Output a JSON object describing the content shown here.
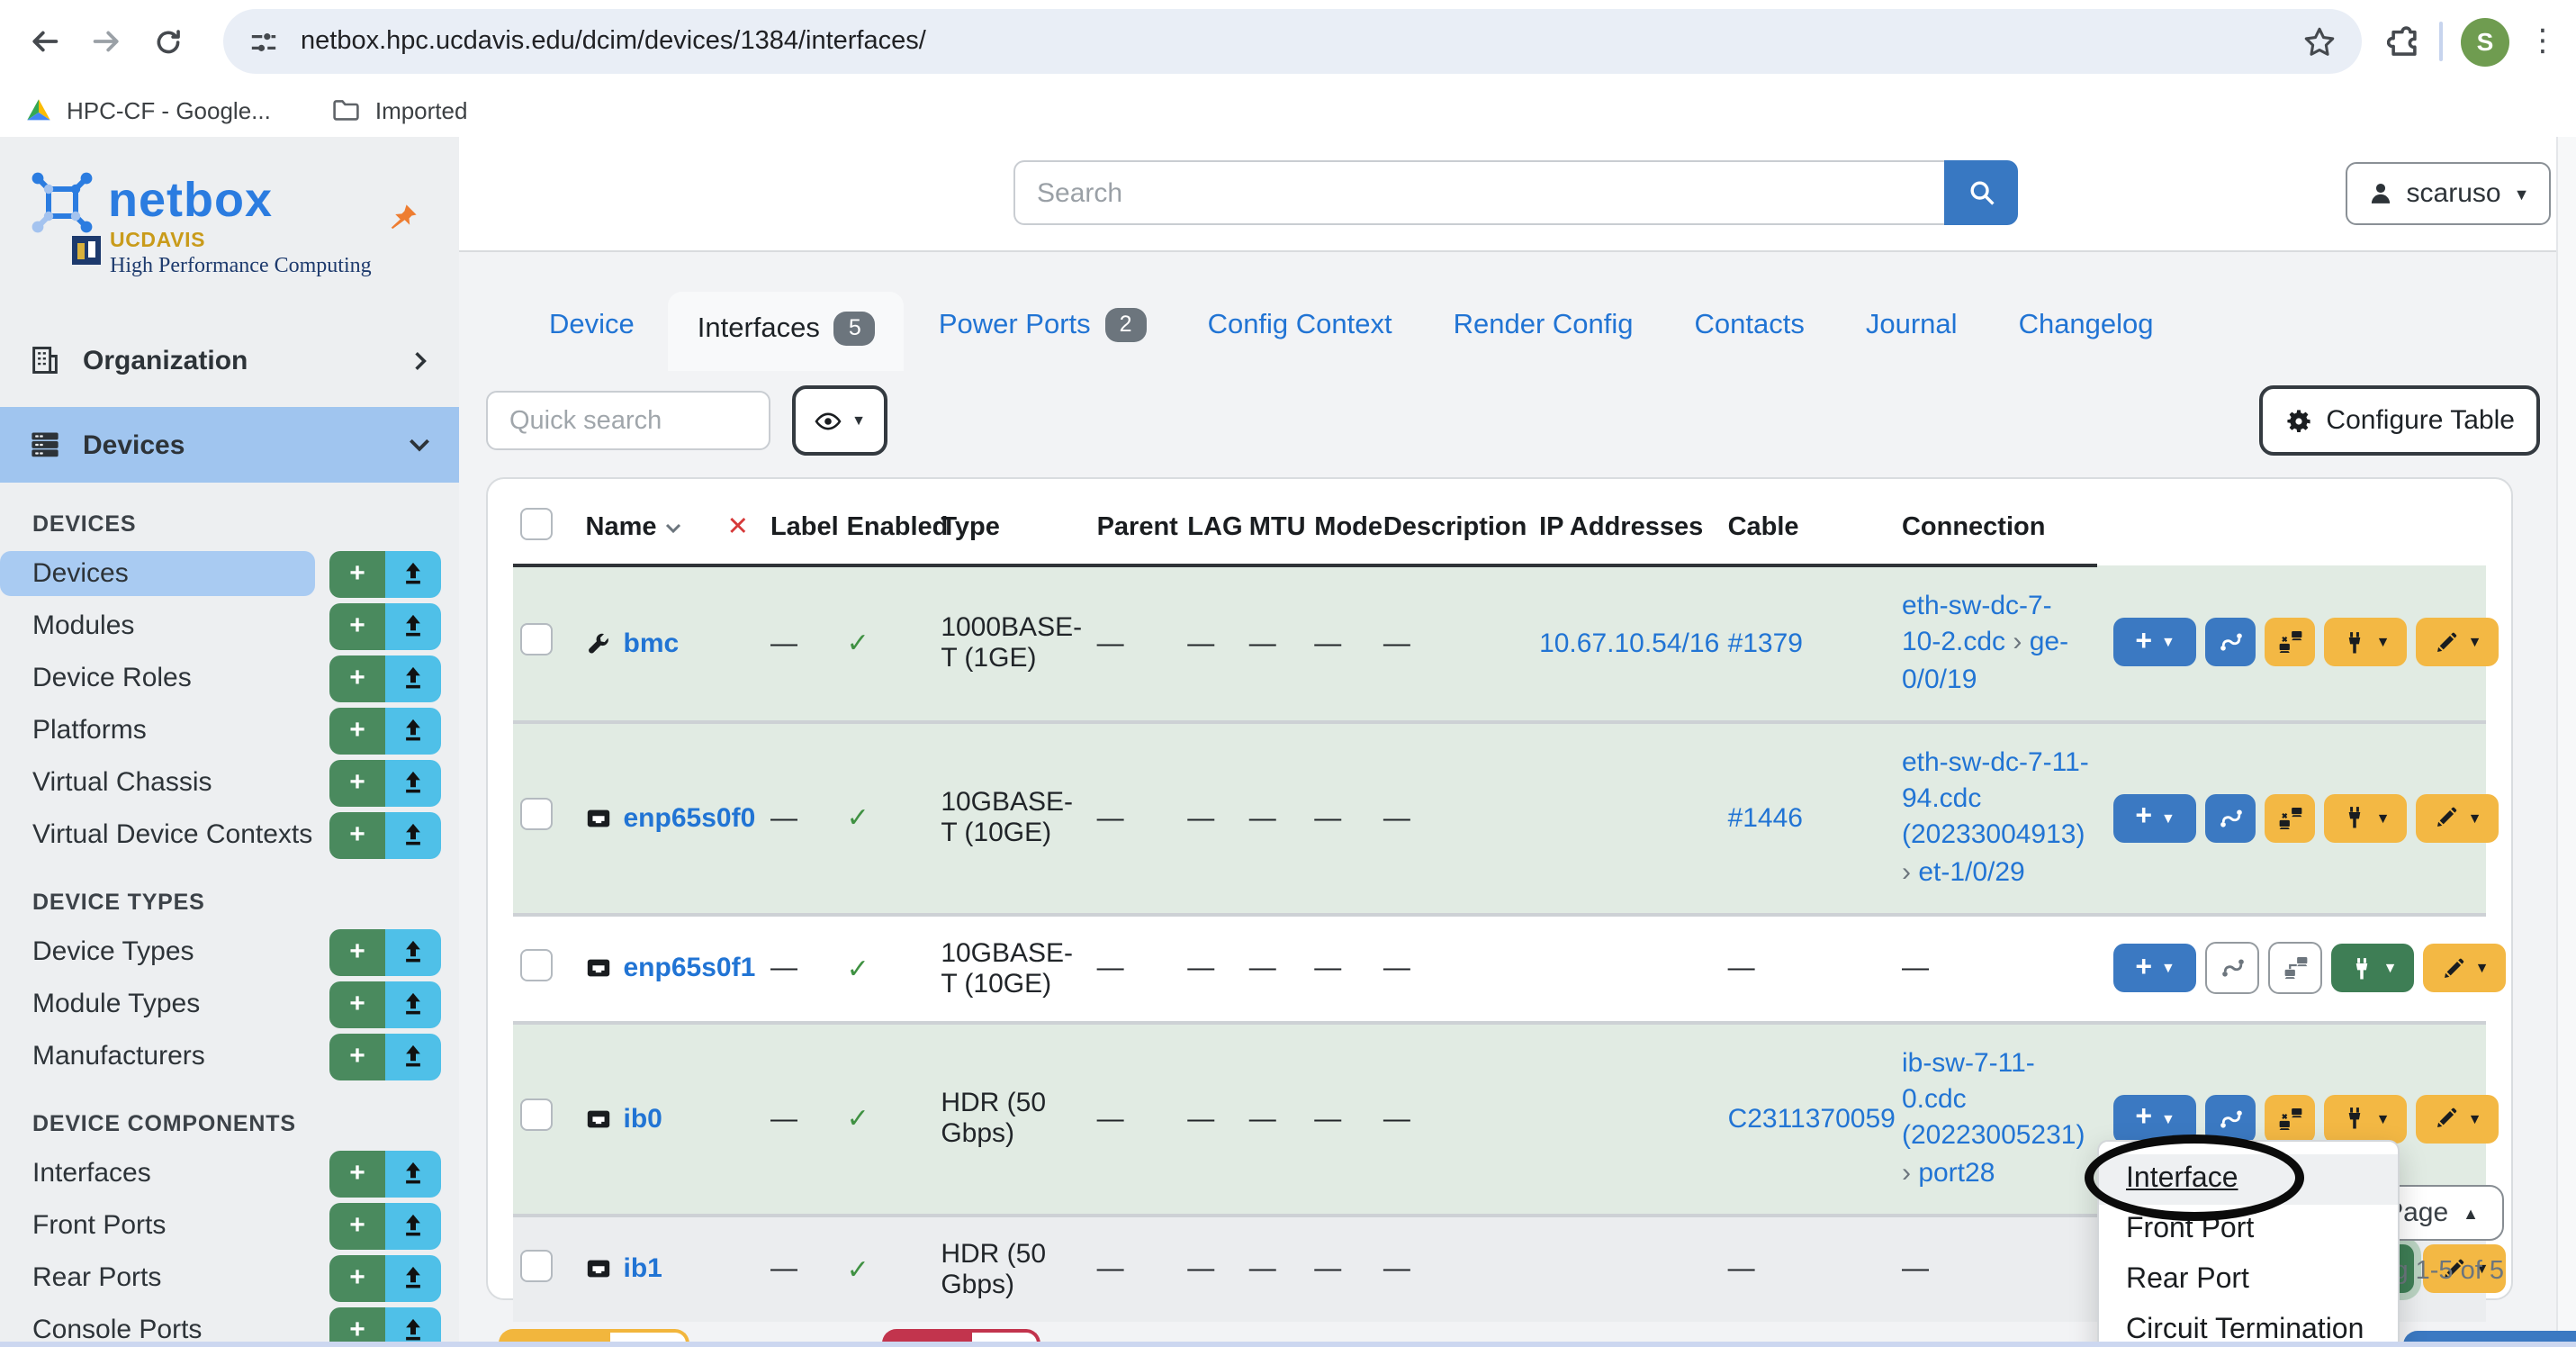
{
  "browser": {
    "url": "netbox.hpc.ucdavis.edu/dcim/devices/1384/interfaces/",
    "avatar_letter": "S",
    "bookmarks": [
      {
        "label": "HPC-CF - Google...",
        "icon": "drive"
      },
      {
        "label": "Imported",
        "icon": "folder"
      }
    ]
  },
  "sidebar": {
    "brand": "netbox",
    "org_name": "UCDAVIS",
    "org_sub": "High Performance Computing",
    "nav_parents": [
      {
        "label": "Organization",
        "icon": "building",
        "chevron": "right",
        "active": false
      },
      {
        "label": "Devices",
        "icon": "servers",
        "chevron": "down",
        "active": true
      }
    ],
    "sections": [
      {
        "title": "DEVICES",
        "items": [
          {
            "label": "Devices",
            "active": true
          },
          {
            "label": "Modules",
            "active": false
          },
          {
            "label": "Device Roles",
            "active": false
          },
          {
            "label": "Platforms",
            "active": false
          },
          {
            "label": "Virtual Chassis",
            "active": false
          },
          {
            "label": "Virtual Device Contexts",
            "active": false
          }
        ]
      },
      {
        "title": "DEVICE TYPES",
        "items": [
          {
            "label": "Device Types",
            "active": false
          },
          {
            "label": "Module Types",
            "active": false
          },
          {
            "label": "Manufacturers",
            "active": false
          }
        ]
      },
      {
        "title": "DEVICE COMPONENTS",
        "items": [
          {
            "label": "Interfaces",
            "active": false
          },
          {
            "label": "Front Ports",
            "active": false
          },
          {
            "label": "Rear Ports",
            "active": false
          },
          {
            "label": "Console Ports",
            "active": false
          }
        ]
      }
    ]
  },
  "topbar": {
    "search_placeholder": "Search",
    "user_label": "scaruso"
  },
  "tabs": [
    {
      "label": "Device",
      "badge": null,
      "active": false
    },
    {
      "label": "Interfaces",
      "badge": "5",
      "active": true
    },
    {
      "label": "Power Ports",
      "badge": "2",
      "active": false
    },
    {
      "label": "Config Context",
      "badge": null,
      "active": false
    },
    {
      "label": "Render Config",
      "badge": null,
      "active": false
    },
    {
      "label": "Contacts",
      "badge": null,
      "active": false
    },
    {
      "label": "Journal",
      "badge": null,
      "active": false
    },
    {
      "label": "Changelog",
      "badge": null,
      "active": false
    }
  ],
  "toolbar": {
    "quick_search_placeholder": "Quick search",
    "configure_table_label": "Configure Table"
  },
  "table": {
    "headers": [
      "Name",
      "✕",
      "Label",
      "Enabled",
      "Type",
      "Parent",
      "LAG",
      "MTU",
      "Mode",
      "Description",
      "IP Addresses",
      "Cable",
      "Connection"
    ],
    "rows": [
      {
        "name": "bmc",
        "name_icon": "wrench",
        "label": "—",
        "enabled": true,
        "type": "1000BASE-T (1GE)",
        "parent": "—",
        "lag": "—",
        "mtu": "—",
        "mode": "—",
        "description": "—",
        "ip": "10.67.10.54/16",
        "cable": "#1379",
        "connection": [
          "eth-sw-dc-7-10-2.cdc",
          "ge-0/0/19"
        ],
        "row_bg": "green",
        "state": "connected",
        "connect_focused": false
      },
      {
        "name": "enp65s0f0",
        "name_icon": "port",
        "label": "—",
        "enabled": true,
        "type": "10GBASE-T (10GE)",
        "parent": "—",
        "lag": "—",
        "mtu": "—",
        "mode": "—",
        "description": "—",
        "ip": "",
        "cable": "#1446",
        "connection": [
          "eth-sw-dc-7-11-94.cdc (20233004913)",
          "et-1/0/29"
        ],
        "row_bg": "green",
        "state": "connected",
        "connect_focused": false
      },
      {
        "name": "enp65s0f1",
        "name_icon": "port",
        "label": "—",
        "enabled": true,
        "type": "10GBASE-T (10GE)",
        "parent": "—",
        "lag": "—",
        "mtu": "—",
        "mode": "—",
        "description": "—",
        "ip": "",
        "cable": "—",
        "connection": [],
        "row_bg": "white",
        "state": "disconnected",
        "connect_focused": false
      },
      {
        "name": "ib0",
        "name_icon": "port",
        "label": "—",
        "enabled": true,
        "type": "HDR (50 Gbps)",
        "parent": "—",
        "lag": "—",
        "mtu": "—",
        "mode": "—",
        "description": "—",
        "ip": "",
        "cable": "C2311370059",
        "connection": [
          "ib-sw-7-11-0.cdc (20223005231)",
          "port28"
        ],
        "row_bg": "green",
        "state": "connected",
        "connect_focused": false
      },
      {
        "name": "ib1",
        "name_icon": "port",
        "label": "—",
        "enabled": true,
        "type": "HDR (50 Gbps)",
        "parent": "—",
        "lag": "—",
        "mtu": "—",
        "mode": "—",
        "description": "—",
        "ip": "",
        "cable": "—",
        "connection": [],
        "row_bg": "gray",
        "state": "disconnected",
        "connect_focused": true
      }
    ]
  },
  "pagination": {
    "per_page_label": "Per Page",
    "showing_label": "Showing 1-5 of 5"
  },
  "context_menu": {
    "items": [
      {
        "label": "Interface",
        "highlighted": true,
        "circled": true
      },
      {
        "label": "Front Port",
        "highlighted": false,
        "circled": false
      },
      {
        "label": "Rear Port",
        "highlighted": false,
        "circled": false
      },
      {
        "label": "Circuit Termination",
        "highlighted": false,
        "circled": false
      }
    ]
  },
  "colors": {
    "link_blue": "#2174d4",
    "row_connected_bg": "#e1ebe3",
    "action_blue": "#3b79c2",
    "action_yellow": "#f3b844",
    "action_green": "#3e7e55",
    "sidebar_active_bg": "#a9cbf2",
    "add_green": "#4a8a5e",
    "import_cyan": "#4fc0e8",
    "danger_red": "#c2344d",
    "avatar_green": "#6f9c50",
    "pin_orange": "#ee7d31",
    "ucd_gold": "#c99b1a",
    "ucd_navy": "#1d3a6d"
  }
}
